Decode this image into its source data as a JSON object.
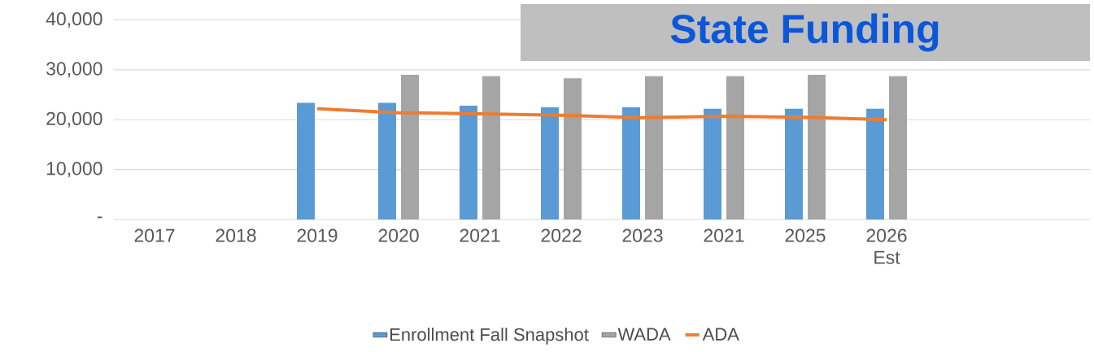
{
  "chart_data": {
    "type": "bar",
    "categories": [
      "2017",
      "2018",
      "2019",
      "2020",
      "2021",
      "2022",
      "2023",
      "2021",
      "2025",
      "2026 Est",
      null,
      null
    ],
    "series": [
      {
        "name": "Enrollment Fall Snapshot",
        "color": "#5b9bd5",
        "values": [
          null,
          null,
          23400,
          23400,
          22800,
          22500,
          22500,
          22200,
          22200,
          22200,
          null,
          null
        ]
      },
      {
        "name": "WADA",
        "color": "#a5a5a5",
        "values": [
          null,
          null,
          null,
          29000,
          28700,
          28300,
          28700,
          28700,
          29000,
          28700,
          null,
          null
        ]
      },
      {
        "name": "ADA",
        "type": "line",
        "color": "#ed7d31",
        "values": [
          null,
          null,
          22200,
          21400,
          21200,
          20900,
          20400,
          20700,
          20500,
          20000,
          null,
          null
        ]
      }
    ],
    "ylim": [
      0,
      40000
    ],
    "yticks": [
      {
        "value": 0,
        "label": "-"
      },
      {
        "value": 10000,
        "label": "10,000"
      },
      {
        "value": 20000,
        "label": "20,000"
      },
      {
        "value": 30000,
        "label": "30,000"
      },
      {
        "value": 40000,
        "label": "40,000"
      }
    ],
    "grid": "y",
    "legend": "bottom",
    "annotations": [
      "State Funding"
    ]
  }
}
